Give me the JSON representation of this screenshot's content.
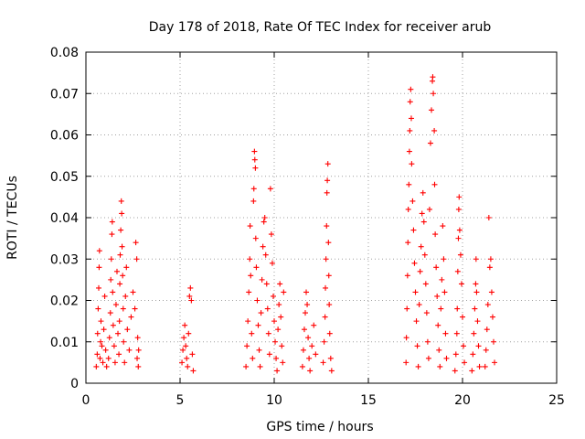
{
  "chart_data": {
    "type": "scatter",
    "title": "Day 178 of 2018, Rate Of TEC Index for receiver arub",
    "xlabel": "GPS time / hours",
    "ylabel": "ROTI / TECUs",
    "xlim": [
      0,
      25
    ],
    "ylim": [
      0,
      0.08
    ],
    "xticks": [
      0,
      5,
      10,
      15,
      20,
      25
    ],
    "xtick_labels": [
      "0",
      "5",
      "10",
      "15",
      "20",
      "25"
    ],
    "yticks": [
      0,
      0.01,
      0.02,
      0.03,
      0.04,
      0.05,
      0.06,
      0.07,
      0.08
    ],
    "ytick_labels": [
      "0",
      "0.01",
      "0.02",
      "0.03",
      "0.04",
      "0.05",
      "0.06",
      "0.07",
      "0.08"
    ],
    "grid": true,
    "legend": "none",
    "marker": "+",
    "color": "#ff0000",
    "points": [
      [
        0.55,
        0.004
      ],
      [
        0.6,
        0.007
      ],
      [
        0.62,
        0.012
      ],
      [
        0.65,
        0.018
      ],
      [
        0.68,
        0.023
      ],
      [
        0.7,
        0.028
      ],
      [
        0.72,
        0.032
      ],
      [
        0.75,
        0.006
      ],
      [
        0.78,
        0.01
      ],
      [
        0.8,
        0.015
      ],
      [
        0.85,
        0.009
      ],
      [
        0.9,
        0.005
      ],
      [
        0.95,
        0.013
      ],
      [
        1.0,
        0.021
      ],
      [
        1.05,
        0.008
      ],
      [
        1.1,
        0.004
      ],
      [
        1.2,
        0.006
      ],
      [
        1.25,
        0.011
      ],
      [
        1.3,
        0.017
      ],
      [
        1.32,
        0.025
      ],
      [
        1.35,
        0.03
      ],
      [
        1.38,
        0.036
      ],
      [
        1.4,
        0.039
      ],
      [
        1.42,
        0.022
      ],
      [
        1.45,
        0.014
      ],
      [
        1.5,
        0.009
      ],
      [
        1.55,
        0.005
      ],
      [
        1.6,
        0.019
      ],
      [
        1.65,
        0.027
      ],
      [
        1.7,
        0.012
      ],
      [
        1.75,
        0.007
      ],
      [
        1.78,
        0.015
      ],
      [
        1.8,
        0.024
      ],
      [
        1.82,
        0.031
      ],
      [
        1.85,
        0.037
      ],
      [
        1.88,
        0.044
      ],
      [
        1.9,
        0.041
      ],
      [
        1.92,
        0.033
      ],
      [
        1.95,
        0.026
      ],
      [
        1.98,
        0.018
      ],
      [
        2.0,
        0.01
      ],
      [
        2.05,
        0.005
      ],
      [
        2.1,
        0.021
      ],
      [
        2.15,
        0.028
      ],
      [
        2.2,
        0.013
      ],
      [
        2.3,
        0.008
      ],
      [
        2.4,
        0.016
      ],
      [
        2.5,
        0.022
      ],
      [
        2.6,
        0.018
      ],
      [
        2.65,
        0.034
      ],
      [
        2.7,
        0.03
      ],
      [
        2.72,
        0.006
      ],
      [
        2.75,
        0.011
      ],
      [
        2.78,
        0.004
      ],
      [
        2.8,
        0.008
      ],
      [
        5.1,
        0.005
      ],
      [
        5.15,
        0.008
      ],
      [
        5.2,
        0.011
      ],
      [
        5.25,
        0.014
      ],
      [
        5.3,
        0.009
      ],
      [
        5.35,
        0.006
      ],
      [
        5.4,
        0.004
      ],
      [
        5.45,
        0.012
      ],
      [
        5.5,
        0.021
      ],
      [
        5.55,
        0.023
      ],
      [
        5.6,
        0.02
      ],
      [
        5.65,
        0.007
      ],
      [
        5.7,
        0.003
      ],
      [
        8.5,
        0.004
      ],
      [
        8.55,
        0.009
      ],
      [
        8.6,
        0.015
      ],
      [
        8.65,
        0.022
      ],
      [
        8.7,
        0.03
      ],
      [
        8.72,
        0.038
      ],
      [
        8.75,
        0.026
      ],
      [
        8.8,
        0.012
      ],
      [
        8.85,
        0.006
      ],
      [
        8.9,
        0.044
      ],
      [
        8.92,
        0.047
      ],
      [
        8.95,
        0.056
      ],
      [
        8.97,
        0.054
      ],
      [
        9.0,
        0.052
      ],
      [
        9.02,
        0.035
      ],
      [
        9.05,
        0.028
      ],
      [
        9.1,
        0.02
      ],
      [
        9.15,
        0.014
      ],
      [
        9.2,
        0.008
      ],
      [
        9.25,
        0.004
      ],
      [
        9.3,
        0.017
      ],
      [
        9.35,
        0.025
      ],
      [
        9.4,
        0.033
      ],
      [
        9.45,
        0.039
      ],
      [
        9.5,
        0.04
      ],
      [
        9.55,
        0.031
      ],
      [
        9.6,
        0.024
      ],
      [
        9.65,
        0.018
      ],
      [
        9.7,
        0.012
      ],
      [
        9.75,
        0.007
      ],
      [
        9.8,
        0.047
      ],
      [
        9.85,
        0.036
      ],
      [
        9.9,
        0.029
      ],
      [
        9.95,
        0.021
      ],
      [
        10.0,
        0.015
      ],
      [
        10.05,
        0.01
      ],
      [
        10.1,
        0.006
      ],
      [
        10.15,
        0.003
      ],
      [
        10.2,
        0.013
      ],
      [
        10.25,
        0.019
      ],
      [
        10.3,
        0.024
      ],
      [
        10.35,
        0.016
      ],
      [
        10.4,
        0.009
      ],
      [
        10.45,
        0.005
      ],
      [
        10.5,
        0.022
      ],
      [
        11.5,
        0.004
      ],
      [
        11.55,
        0.008
      ],
      [
        11.6,
        0.013
      ],
      [
        11.65,
        0.017
      ],
      [
        11.7,
        0.022
      ],
      [
        11.75,
        0.019
      ],
      [
        11.8,
        0.011
      ],
      [
        11.85,
        0.006
      ],
      [
        11.9,
        0.003
      ],
      [
        12.0,
        0.009
      ],
      [
        12.1,
        0.014
      ],
      [
        12.2,
        0.007
      ],
      [
        12.6,
        0.005
      ],
      [
        12.65,
        0.01
      ],
      [
        12.7,
        0.016
      ],
      [
        12.72,
        0.023
      ],
      [
        12.75,
        0.03
      ],
      [
        12.78,
        0.038
      ],
      [
        12.8,
        0.046
      ],
      [
        12.82,
        0.049
      ],
      [
        12.85,
        0.053
      ],
      [
        12.88,
        0.034
      ],
      [
        12.9,
        0.026
      ],
      [
        12.92,
        0.019
      ],
      [
        12.95,
        0.012
      ],
      [
        13.0,
        0.006
      ],
      [
        13.05,
        0.003
      ],
      [
        17.0,
        0.005
      ],
      [
        17.02,
        0.011
      ],
      [
        17.05,
        0.018
      ],
      [
        17.08,
        0.026
      ],
      [
        17.1,
        0.034
      ],
      [
        17.12,
        0.042
      ],
      [
        17.15,
        0.048
      ],
      [
        17.18,
        0.056
      ],
      [
        17.2,
        0.061
      ],
      [
        17.22,
        0.068
      ],
      [
        17.25,
        0.071
      ],
      [
        17.28,
        0.064
      ],
      [
        17.3,
        0.053
      ],
      [
        17.35,
        0.044
      ],
      [
        17.4,
        0.037
      ],
      [
        17.45,
        0.029
      ],
      [
        17.5,
        0.022
      ],
      [
        17.55,
        0.015
      ],
      [
        17.6,
        0.009
      ],
      [
        17.65,
        0.004
      ],
      [
        17.7,
        0.019
      ],
      [
        17.75,
        0.027
      ],
      [
        17.8,
        0.033
      ],
      [
        17.85,
        0.041
      ],
      [
        17.9,
        0.046
      ],
      [
        17.95,
        0.039
      ],
      [
        18.0,
        0.031
      ],
      [
        18.05,
        0.024
      ],
      [
        18.1,
        0.017
      ],
      [
        18.15,
        0.01
      ],
      [
        18.2,
        0.006
      ],
      [
        18.25,
        0.042
      ],
      [
        18.3,
        0.058
      ],
      [
        18.35,
        0.066
      ],
      [
        18.4,
        0.073
      ],
      [
        18.42,
        0.074
      ],
      [
        18.45,
        0.07
      ],
      [
        18.5,
        0.061
      ],
      [
        18.52,
        0.048
      ],
      [
        18.55,
        0.036
      ],
      [
        18.6,
        0.028
      ],
      [
        18.65,
        0.021
      ],
      [
        18.7,
        0.014
      ],
      [
        18.75,
        0.008
      ],
      [
        18.8,
        0.004
      ],
      [
        18.85,
        0.018
      ],
      [
        18.9,
        0.025
      ],
      [
        18.95,
        0.038
      ],
      [
        19.0,
        0.03
      ],
      [
        19.05,
        0.022
      ],
      [
        19.1,
        0.012
      ],
      [
        19.15,
        0.006
      ],
      [
        19.6,
        0.003
      ],
      [
        19.65,
        0.007
      ],
      [
        19.7,
        0.012
      ],
      [
        19.72,
        0.018
      ],
      [
        19.75,
        0.027
      ],
      [
        19.78,
        0.035
      ],
      [
        19.8,
        0.042
      ],
      [
        19.82,
        0.045
      ],
      [
        19.85,
        0.037
      ],
      [
        19.9,
        0.031
      ],
      [
        19.95,
        0.024
      ],
      [
        20.0,
        0.016
      ],
      [
        20.05,
        0.009
      ],
      [
        20.1,
        0.005
      ],
      [
        20.5,
        0.003
      ],
      [
        20.55,
        0.007
      ],
      [
        20.6,
        0.012
      ],
      [
        20.65,
        0.018
      ],
      [
        20.7,
        0.024
      ],
      [
        20.72,
        0.03
      ],
      [
        20.75,
        0.022
      ],
      [
        20.8,
        0.015
      ],
      [
        20.85,
        0.009
      ],
      [
        20.9,
        0.004
      ],
      [
        21.2,
        0.004
      ],
      [
        21.25,
        0.008
      ],
      [
        21.3,
        0.013
      ],
      [
        21.35,
        0.019
      ],
      [
        21.4,
        0.04
      ],
      [
        21.45,
        0.028
      ],
      [
        21.5,
        0.03
      ],
      [
        21.55,
        0.022
      ],
      [
        21.6,
        0.016
      ],
      [
        21.65,
        0.01
      ],
      [
        21.7,
        0.005
      ]
    ]
  }
}
